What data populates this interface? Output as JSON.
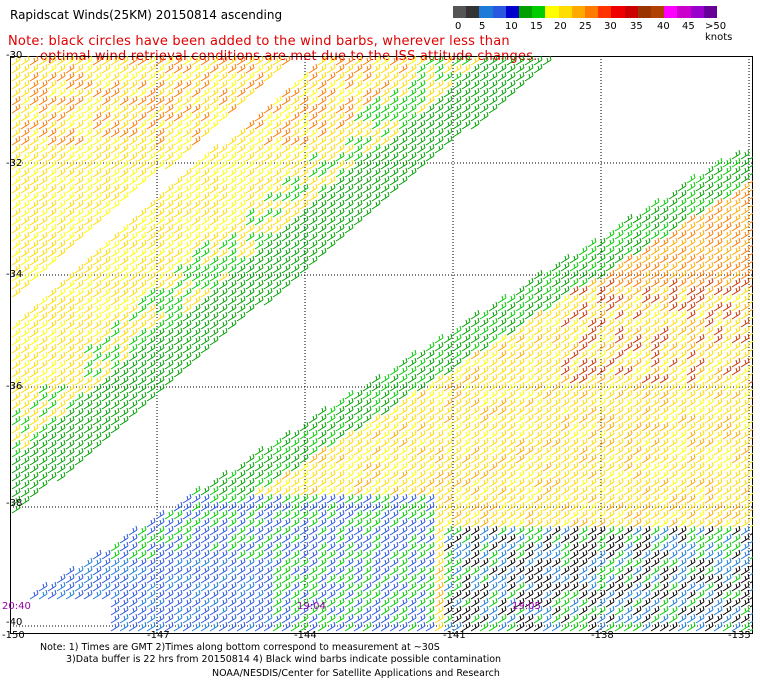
{
  "title": "Rapidscat Winds(25KM) 20150814 ascending",
  "note_line1": "Note: black circles have been added to the wind barbs, wherever less than",
  "note_line2": "optimal wind retrieval conditions are met due to the ISS attitude changes.",
  "legend": {
    "colors": [
      "#555555",
      "#333333",
      "#1d7bd8",
      "#2a56e0",
      "#0000cc",
      "#00a000",
      "#00cc00",
      "#ffff00",
      "#ffdd00",
      "#ffaa00",
      "#ff7a00",
      "#ff3300",
      "#ee0000",
      "#cc0000",
      "#993300",
      "#b04000",
      "#ff00ff",
      "#cc00cc",
      "#9900cc",
      "#660099"
    ],
    "labels": [
      "0",
      "5",
      "10",
      "15",
      "20",
      "25",
      "30",
      "35",
      "40",
      "45",
      ">50 knots"
    ]
  },
  "lat_labels": [
    "-30",
    "-32",
    "-34",
    "-36",
    "-38",
    "-40"
  ],
  "lon_labels": [
    "-150",
    "-147",
    "-144",
    "-141",
    "-138",
    "-135"
  ],
  "time_labels": [
    "20:40",
    "19:04",
    "19:05"
  ],
  "footer_line1": "Note: 1) Times are GMT 2)Times along bottom correspond to measurement at ~30S",
  "footer_line2": "3)Data buffer is 22 hrs from 20150814 4) Black wind barbs indicate possible contamination",
  "footer_line3": "NOAA/NESDIS/Center for Satellite Applications and Research",
  "map": {
    "lat_range": [
      -40,
      -30
    ],
    "lon_range": [
      -150,
      -135
    ],
    "grid_color": "#000000"
  }
}
